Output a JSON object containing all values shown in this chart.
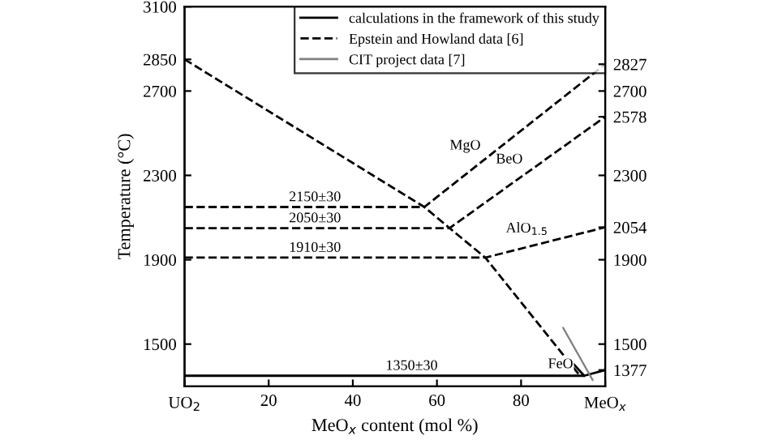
{
  "chart_data": {
    "type": "line",
    "xlabel": "MeO$_{x}$ content (mol %)",
    "ylabel": "Temperature (°C)",
    "xlim": [
      0,
      100
    ],
    "ylim": [
      1300,
      3100
    ],
    "xticks": [
      {
        "value": 0,
        "label": null
      },
      20,
      40,
      60,
      80,
      {
        "value": 100,
        "label": null
      }
    ],
    "yticks": [
      1500,
      1900,
      2300,
      2700,
      2850,
      3100
    ],
    "y2lim": [
      1300,
      3100
    ],
    "y2ticks": [
      1377,
      1500,
      1900,
      2054,
      2300,
      2578,
      2700,
      2827
    ],
    "legend": "top right",
    "grid": false,
    "series": [
      {
        "name": "calculations in the framework of this study",
        "color": "#000000",
        "line_style": "solid",
        "x": [
          0,
          95,
          100
        ],
        "values": [
          1350,
          1350,
          1377
        ]
      },
      {
        "name": "Epstein and Howland data [6]",
        "color": "#000000",
        "line_style": "dashed",
        "x": [
          0,
          57,
          63,
          71.5,
          94
        ],
        "values": [
          2850,
          2150,
          2050,
          1910,
          1350
        ]
      },
      {
        "color": "#000000",
        "line_style": "dashed",
        "x": [
          0,
          57,
          100
        ],
        "values": [
          2150,
          2150,
          2827
        ]
      },
      {
        "color": "#000000",
        "line_style": "dashed",
        "x": [
          0,
          63,
          100
        ],
        "values": [
          2050,
          2050,
          2578
        ]
      },
      {
        "color": "#000000",
        "line_style": "dashed",
        "x": [
          0,
          71.5,
          100
        ],
        "values": [
          1910,
          1910,
          2054
        ]
      },
      {
        "color": "#000000",
        "line_style": "solid",
        "x": [
          92.5,
          95
        ],
        "values": [
          1405,
          1350
        ]
      },
      {
        "name": "CIT project data [7]",
        "color": "#808080",
        "line_style": "solid",
        "x": [
          90,
          97
        ],
        "values": [
          1577,
          1330
        ]
      }
    ],
    "annotations": [
      {
        "text": "MgO",
        "x": 72,
        "y": 2386
      },
      {
        "text": "BeO",
        "x": 82,
        "y": 2321
      },
      {
        "text": "AlO$_{1.5}$",
        "x": 88,
        "y": 1993
      },
      {
        "text": "FeO",
        "x": 94,
        "y": 1350
      },
      {
        "text": "2150±30",
        "x": 31,
        "y": 2150
      },
      {
        "text": "2050±30",
        "x": 31,
        "y": 2050
      },
      {
        "text": "1910±30",
        "x": 31,
        "y": 1910
      },
      {
        "text": "1350±30",
        "x": 54,
        "y": 1350
      },
      "UO$_{2}$",
      "MeO$_{x}$"
    ]
  }
}
